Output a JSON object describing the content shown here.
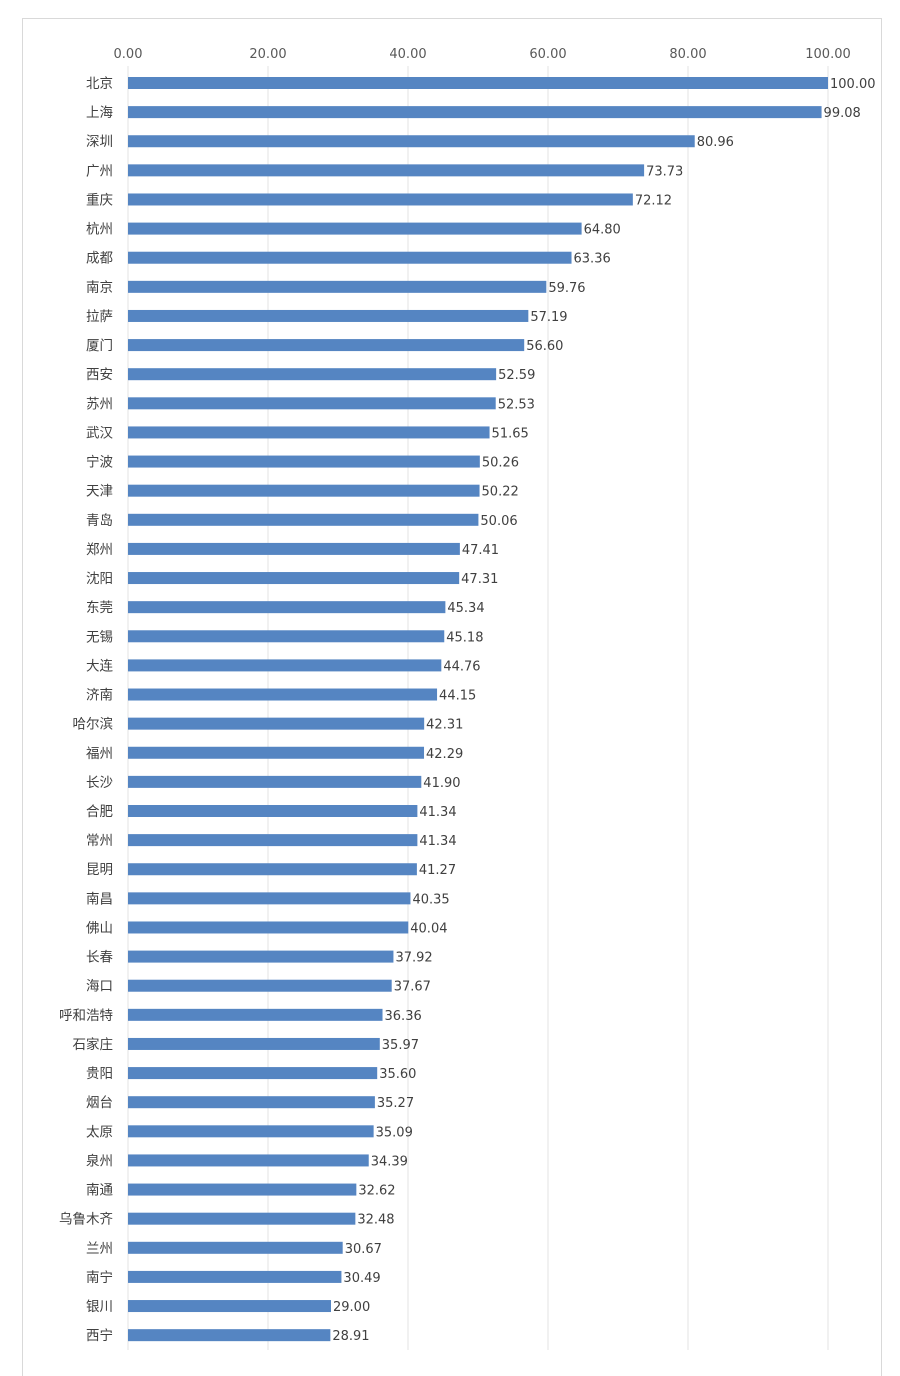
{
  "chart_data": {
    "type": "bar",
    "orientation": "horizontal",
    "x_ticks": [
      "0.00",
      "20.00",
      "40.00",
      "60.00",
      "80.00",
      "100.00"
    ],
    "xlim": [
      0,
      100
    ],
    "grid": true,
    "legend": "none",
    "bar_color": "#5585c2",
    "categories": [
      "北京",
      "上海",
      "深圳",
      "广州",
      "重庆",
      "杭州",
      "成都",
      "南京",
      "拉萨",
      "厦门",
      "西安",
      "苏州",
      "武汉",
      "宁波",
      "天津",
      "青岛",
      "郑州",
      "沈阳",
      "东莞",
      "无锡",
      "大连",
      "济南",
      "哈尔滨",
      "福州",
      "长沙",
      "合肥",
      "常州",
      "昆明",
      "南昌",
      "佛山",
      "长春",
      "海口",
      "呼和浩特",
      "石家庄",
      "贵阳",
      "烟台",
      "太原",
      "泉州",
      "南通",
      "乌鲁木齐",
      "兰州",
      "南宁",
      "银川",
      "西宁"
    ],
    "values": [
      100.0,
      99.08,
      80.96,
      73.73,
      72.12,
      64.8,
      63.36,
      59.76,
      57.19,
      56.6,
      52.59,
      52.53,
      51.65,
      50.26,
      50.22,
      50.06,
      47.41,
      47.31,
      45.34,
      45.18,
      44.76,
      44.15,
      42.31,
      42.29,
      41.9,
      41.34,
      41.34,
      41.27,
      40.35,
      40.04,
      37.92,
      37.67,
      36.36,
      35.97,
      35.6,
      35.27,
      35.09,
      34.39,
      32.62,
      32.48,
      30.67,
      30.49,
      29.0,
      28.91
    ],
    "value_labels": [
      "100.00",
      "99.08",
      "80.96",
      "73.73",
      "72.12",
      "64.80",
      "63.36",
      "59.76",
      "57.19",
      "56.60",
      "52.59",
      "52.53",
      "51.65",
      "50.26",
      "50.22",
      "50.06",
      "47.41",
      "47.31",
      "45.34",
      "45.18",
      "44.76",
      "44.15",
      "42.31",
      "42.29",
      "41.90",
      "41.34",
      "41.34",
      "41.27",
      "40.35",
      "40.04",
      "37.92",
      "37.67",
      "36.36",
      "35.97",
      "35.60",
      "35.27",
      "35.09",
      "34.39",
      "32.62",
      "32.48",
      "30.67",
      "30.49",
      "29.00",
      "28.91"
    ]
  }
}
